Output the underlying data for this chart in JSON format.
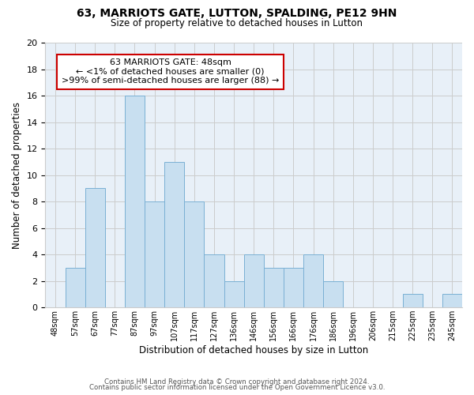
{
  "title": "63, MARRIOTS GATE, LUTTON, SPALDING, PE12 9HN",
  "subtitle": "Size of property relative to detached houses in Lutton",
  "xlabel": "Distribution of detached houses by size in Lutton",
  "ylabel": "Number of detached properties",
  "bar_labels": [
    "48sqm",
    "57sqm",
    "67sqm",
    "77sqm",
    "87sqm",
    "97sqm",
    "107sqm",
    "117sqm",
    "127sqm",
    "136sqm",
    "146sqm",
    "156sqm",
    "166sqm",
    "176sqm",
    "186sqm",
    "196sqm",
    "206sqm",
    "215sqm",
    "225sqm",
    "235sqm",
    "245sqm"
  ],
  "bar_values": [
    0,
    3,
    9,
    0,
    16,
    8,
    11,
    8,
    4,
    2,
    4,
    3,
    3,
    4,
    2,
    0,
    0,
    0,
    1,
    0,
    1
  ],
  "bar_color": "#c8dff0",
  "bar_edge_color": "#7ab0d4",
  "ylim": [
    0,
    20
  ],
  "yticks": [
    0,
    2,
    4,
    6,
    8,
    10,
    12,
    14,
    16,
    18,
    20
  ],
  "annotation_box_title": "63 MARRIOTS GATE: 48sqm",
  "annotation_line1": "← <1% of detached houses are smaller (0)",
  "annotation_line2": ">99% of semi-detached houses are larger (88) →",
  "annotation_box_color": "#ffffff",
  "annotation_box_edge_color": "#cc0000",
  "footer_line1": "Contains HM Land Registry data © Crown copyright and database right 2024.",
  "footer_line2": "Contains public sector information licensed under the Open Government Licence v3.0.",
  "background_color": "#ffffff",
  "grid_color": "#cccccc",
  "plot_bg_color": "#e8f0f8"
}
